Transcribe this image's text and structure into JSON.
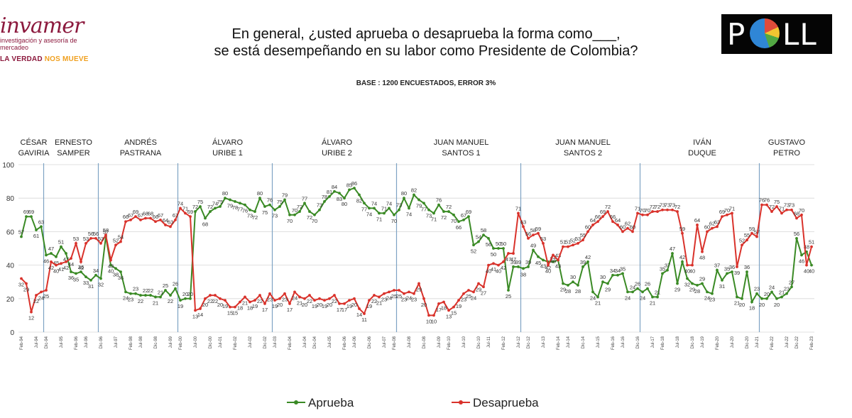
{
  "header": {
    "logo_name": "invamer",
    "logo_sub": "investigación y asesoría de mercadeo",
    "logo_tag_main": "LA VERDAD ",
    "logo_tag_accent": "NOS MUEVE",
    "title_line1": "En general, ¿usted aprueba o desaprueba la forma como___,",
    "title_line2": "se está desempeñando en su labor como Presidente de Colombia?",
    "base": "BASE : 1200 ENCUESTADOS, ERROR 3%",
    "poll_left": "P",
    "poll_right": "LL"
  },
  "colors": {
    "aprueba": "#3a8a25",
    "desaprueba": "#d9322b",
    "period_line": "#7ea3c4"
  },
  "presidents": [
    {
      "line1": "CÉSAR",
      "line2": "GAVIRIA",
      "start": 0
    },
    {
      "line1": "ERNESTO",
      "line2": "SAMPER",
      "start": 5
    },
    {
      "line1": "ANDRÉS",
      "line2": "PASTRANA",
      "start": 16
    },
    {
      "line1": "ÁLVARO",
      "line2": "URIBE 1",
      "start": 32
    },
    {
      "line1": "ÁLVARO",
      "line2": "URIBE 2",
      "start": 51
    },
    {
      "line1": "JUAN MANUEL",
      "line2": "SANTOS 1",
      "start": 76
    },
    {
      "line1": "JUAN MANUEL",
      "line2": "SANTOS 2",
      "start": 101
    },
    {
      "line1": "IVÁN",
      "line2": "DUQUE",
      "start": 125
    },
    {
      "line1": "GUSTAVO",
      "line2": "PETRO",
      "start": 149
    }
  ],
  "chart_data": {
    "type": "line",
    "ylim": [
      0,
      100
    ],
    "yticks": [
      0,
      20,
      40,
      60,
      80,
      100
    ],
    "series": [
      {
        "name": "Aprueba",
        "values": [
          57,
          69,
          69,
          61,
          63,
          46,
          47,
          45,
          51,
          47,
          36,
          35,
          36,
          33,
          31,
          34,
          32,
          57,
          40,
          38,
          36,
          24,
          23,
          23,
          22,
          22,
          22,
          21,
          21,
          25,
          22,
          26,
          19,
          20,
          20,
          72,
          75,
          68,
          72,
          74,
          75,
          80,
          79,
          78,
          77,
          76,
          73,
          72,
          80,
          75,
          76,
          73,
          75,
          79,
          70,
          70,
          72,
          77,
          72,
          70,
          73,
          78,
          81,
          84,
          83,
          80,
          85,
          86,
          82,
          77,
          74,
          74,
          71,
          71,
          74,
          70,
          73,
          80,
          74,
          82,
          79,
          77,
          73,
          71,
          76,
          72,
          72,
          70,
          66,
          67,
          69,
          52,
          54,
          58,
          56,
          50,
          50,
          50,
          25,
          39,
          39,
          38,
          39,
          49,
          45,
          43,
          42,
          42,
          43,
          29,
          28,
          30,
          28,
          39,
          42,
          24,
          21,
          30,
          29,
          34,
          34,
          35,
          24,
          24,
          26,
          24,
          26,
          21,
          21,
          35,
          37,
          47,
          29,
          42,
          32,
          29,
          28,
          29,
          24,
          23,
          37,
          31,
          35,
          36,
          21,
          20,
          36,
          18,
          23,
          20,
          20,
          24,
          20,
          21,
          23,
          27,
          56,
          46,
          48,
          40
        ]
      },
      {
        "name": "Desaprueba",
        "values": [
          32,
          29,
          12,
          22,
          24,
          25,
          42,
          40,
          41,
          42,
          44,
          53,
          42,
          53,
          56,
          56,
          53,
          58,
          43,
          52,
          54,
          66,
          67,
          69,
          67,
          68,
          68,
          66,
          67,
          64,
          63,
          67,
          74,
          71,
          69,
          13,
          14,
          20,
          22,
          22,
          20,
          19,
          15,
          15,
          18,
          21,
          18,
          19,
          22,
          17,
          23,
          19,
          20,
          23,
          17,
          24,
          21,
          20,
          22,
          19,
          20,
          19,
          20,
          22,
          17,
          17,
          19,
          20,
          14,
          11,
          19,
          22,
          21,
          23,
          24,
          25,
          25,
          23,
          24,
          23,
          29,
          20,
          10,
          10,
          17,
          18,
          13,
          15,
          19,
          23,
          25,
          24,
          29,
          27,
          40,
          41,
          40,
          42,
          47,
          47,
          71,
          63,
          56,
          58,
          59,
          53,
          40,
          46,
          43,
          51,
          51,
          52,
          53,
          55,
          60,
          64,
          66,
          69,
          72,
          66,
          64,
          60,
          62,
          60,
          71,
          70,
          70,
          72,
          72,
          73,
          73,
          73,
          72,
          59,
          40,
          40,
          64,
          48,
          60,
          62,
          63,
          69,
          70,
          71,
          39,
          52,
          55,
          59,
          57,
          76,
          76,
          72,
          75,
          71,
          73,
          73,
          68,
          70,
          40,
          51
        ]
      }
    ],
    "x_label_sample": [
      "Feb-94",
      "Jul-94",
      "Dic-94",
      "Jul-95",
      "Feb-96",
      "Jul-96",
      "Dic-96",
      "Jul-97",
      "Feb-98",
      "Jul-98",
      "Dic-98",
      "Jul-99",
      "Feb-00",
      "Jul-00",
      "Dic-00",
      "Jul-01",
      "Feb-02",
      "Jul-02",
      "Dic-02",
      "Jul-03",
      "Feb-04",
      "Jul-04",
      "Dic-04",
      "Jul-05",
      "Feb-06",
      "Jul-06",
      "Dic-06",
      "Jul-07",
      "Feb-08",
      "Jul-08",
      "Dic-08",
      "Jul-09",
      "Feb-10",
      "Jul-10",
      "Dic-10",
      "Jul-11",
      "Feb-12",
      "Jul-12",
      "Dic-12",
      "Jul-13",
      "Feb-14",
      "Jul-14",
      "Dic-14",
      "Jul-15",
      "Feb-16",
      "Jul-16",
      "Dic-16",
      "Jul-17",
      "Feb-18",
      "Jul-18",
      "Dic-18",
      "Jul-19",
      "Feb-20",
      "Jul-20",
      "Dic-20",
      "Jul-21",
      "Feb-22",
      "Jul-22",
      "Dic-22",
      "Feb-23"
    ]
  }
}
